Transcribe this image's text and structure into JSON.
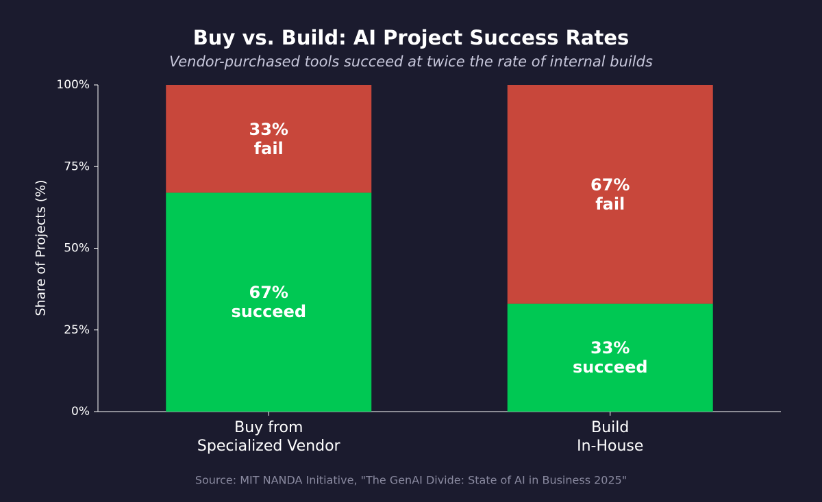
{
  "chart_data": {
    "type": "stacked_bar",
    "title": "Buy vs. Build: AI Project Success Rates",
    "subtitle": "Vendor-purchased tools succeed at twice the rate of internal builds",
    "y_label": "Share of Projects (%)",
    "source": "Source: MIT NANDA Initiative, \"The GenAI Divide: State of AI in Business 2025\"",
    "categories": [
      "Buy from\nSpecialized Vendor",
      "Build\nIn-House"
    ],
    "series": [
      {
        "name": "succeed",
        "color": "#00c853",
        "values": [
          67,
          33
        ],
        "value_labels": [
          "67%",
          "33%"
        ]
      },
      {
        "name": "fail",
        "color": "#c8473b",
        "values": [
          33,
          67
        ],
        "value_labels": [
          "33%",
          "67%"
        ]
      }
    ],
    "ylim": [
      0,
      100
    ],
    "yticks": [
      {
        "value": 0,
        "label": "0%"
      },
      {
        "value": 25,
        "label": "25%"
      },
      {
        "value": 50,
        "label": "50%"
      },
      {
        "value": 75,
        "label": "75%"
      },
      {
        "value": 100,
        "label": "100%"
      }
    ]
  }
}
